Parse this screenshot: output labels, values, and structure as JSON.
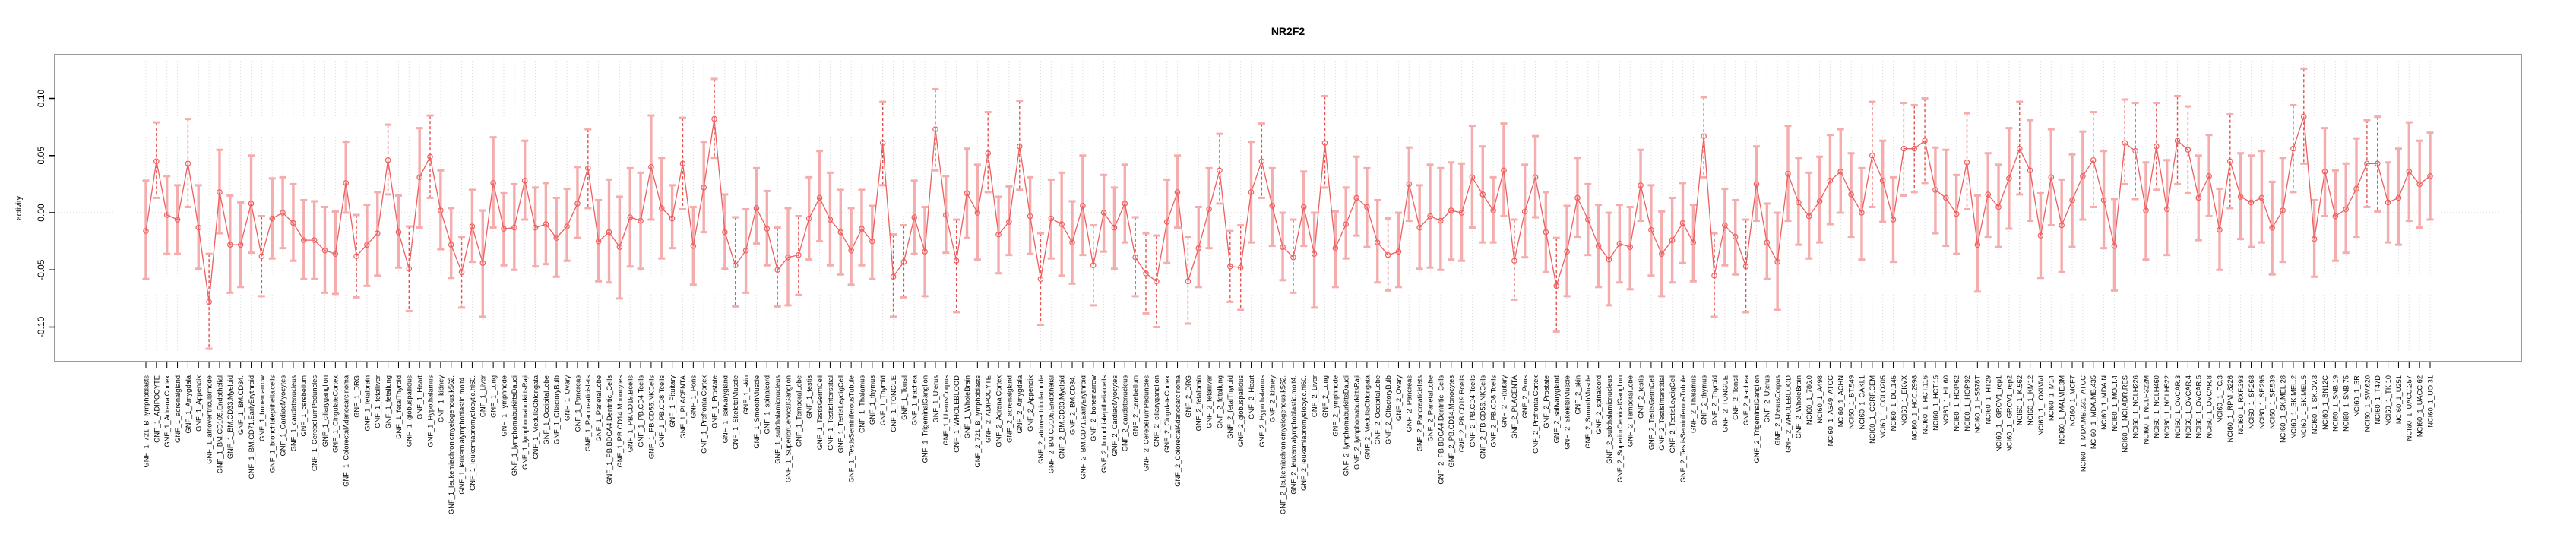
{
  "title": "NR2F2",
  "colors": {
    "series_line": "#ee5f5f",
    "point_stroke": "#ee5f5f",
    "errorbar_solid": "#f5acac",
    "errorbar_significant_dashed": "#e84f4f",
    "errorbar_cap": "#f5acac",
    "gridline": "#dcdcdc",
    "zero_line": "#c8c8c8",
    "plot_border": "#9a9a9a",
    "axis_tick": "#000000",
    "text": "#000000",
    "background": "#ffffff"
  },
  "chart_data": {
    "type": "line",
    "subtype": "point-errorbar-series",
    "title": "NR2F2",
    "xlabel": "",
    "ylabel": "activity",
    "ylim": [
      -0.131,
      0.138
    ],
    "yticks": [
      0.1,
      0.05,
      0.0,
      -0.05,
      -0.1
    ],
    "ytick_labels": [
      "0.10",
      "0.05",
      "0.00",
      "-0.05",
      "-0.10"
    ],
    "grid": "vertical-dotted-per-category",
    "zero_reference_line": true,
    "legend": "none",
    "categories": [
      "GNF_1_721_B_lymphoblasts",
      "GNF_1_ADIPOCYTE",
      "GNF_1_AdrenalCortex",
      "GNF_1_adrenalgland",
      "GNF_1_Amygdala",
      "GNF_1_Appendix",
      "GNF_1_atrioventricularnode",
      "GNF_1_BM.CD105.Endothelial",
      "GNF_1_BM.CD33.Myeloid",
      "GNF_1_BM.CD34.",
      "GNF_1_BM.CD71.EarlyErythroid",
      "GNF_1_bonemarrow",
      "GNF_1_bronchialepithelialcells",
      "GNF_1_CardiacMyocytes",
      "GNF_1_caudatenucleus",
      "GNF_1_cerebellum",
      "GNF_1_CerebellumPeduncles",
      "GNF_1_ciliaryganglion",
      "GNF_1_CingulateCortex",
      "GNF_1_ColorectalAdenocarcinoma",
      "GNF_1_DRG",
      "GNF_1_fetalbrain",
      "GNF_1_fetalliver",
      "GNF_1_fetallung",
      "GNF_1_fetalThyroid",
      "GNF_1_globuspallidus",
      "GNF_1_Heart",
      "GNF_1_Hypothalamus",
      "GNF_1_kidney",
      "GNF_1_leukemiachronicmyelogenous.k562.",
      "GNF_1_leukemialymphoblastic.molt4.",
      "GNF_1_leukemiapromyelocytic.hl60.",
      "GNF_1_Liver",
      "GNF_1_Lung",
      "GNF_1_lymphnode",
      "GNF_1_lymphomaburkittsDaudi",
      "GNF_1_lymphomaburkittsRaji",
      "GNF_1_MedullaOblongata",
      "GNF_1_OccipitalLobe",
      "GNF_1_OlfactoryBulb",
      "GNF_1_Ovary",
      "GNF_1_Pancreas",
      "GNF_1_Pancreaticislets",
      "GNF_1_ParietalLobe",
      "GNF_1_PB.BDCA4.Dentritic_Cells",
      "GNF_1_PB.CD14.Monocytes",
      "GNF_1_PB.CD19.Bcells",
      "GNF_1_PB.CD4.Tcells",
      "GNF_1_PB.CD56.NKCells",
      "GNF_1_PB.CD8.Tcells",
      "GNF_1_Pituitary",
      "GNF_1_PLACENTA",
      "GNF_1_Pons",
      "GNF_1_PrefrontalCortex",
      "GNF_1_Prostate",
      "GNF_1_salivarygland",
      "GNF_1_SkeletalMuscle",
      "GNF_1_skin",
      "GNF_1_SmoothMuscle",
      "GNF_1_spinalcord",
      "GNF_1_subthalamicnucleus",
      "GNF_1_SuperiorCervicalGanglion",
      "GNF_1_TemporalLobe",
      "GNF_1_testis",
      "GNF_1_TestisGermCell",
      "GNF_1_TestisInterstitial",
      "GNF_1_TestisLeydigCell",
      "GNF_1_TestisSeminiferousTubule",
      "GNF_1_Thalamus",
      "GNF_1_thymus",
      "GNF_1_Thyroid",
      "GNF_1_TONGUE",
      "GNF_1_Tonsil",
      "GNF_1_trachea",
      "GNF_1_TrigeminalGanglion",
      "GNF_1_Uterus",
      "GNF_1_UterusCorpus",
      "GNF_1_WHOLEBLOOD",
      "GNF_1_WholeBrain",
      "GNF_2_721_B_lymphoblasts",
      "GNF_2_ADIPOCYTE",
      "GNF_2_AdrenalCortex",
      "GNF_2_adrenalgland",
      "GNF_2_Amygdala",
      "GNF_2_Appendix",
      "GNF_2_atrioventricularnode",
      "GNF_2_BM.CD105.Endothelial",
      "GNF_2_BM.CD33.Myeloid",
      "GNF_2_BM.CD34.",
      "GNF_2_BM.CD71.EarlyErythroid",
      "GNF_2_bonemarrow",
      "GNF_2_bronchialepithelialcells",
      "GNF_2_CardiacMyocytes",
      "GNF_2_caudatenucleus",
      "GNF_2_cerebellum",
      "GNF_2_CerebellumPeduncles",
      "GNF_2_ciliaryganglion",
      "GNF_2_CingulateCortex",
      "GNF_2_ColorectalAdenocarcinoma",
      "GNF_2_DRG",
      "GNF_2_fetalbrain",
      "GNF_2_fetalliver",
      "GNF_2_fetallung",
      "GNF_2_fetalThyroid",
      "GNF_2_globuspallidus",
      "GNF_2_Heart",
      "GNF_2_Hypothalamus",
      "GNF_2_kidney",
      "GNF_2_leukemiachronicmyelogenous.k562.",
      "GNF_2_leukemialymphoblastic.molt4.",
      "GNF_2_leukemiapromyelocytic.hl60.",
      "GNF_2_Liver",
      "GNF_2_Lung",
      "GNF_2_lymphnode",
      "GNF_2_lymphomaburkittsDaudi",
      "GNF_2_lymphomaburkittsRaji",
      "GNF_2_MedullaOblongata",
      "GNF_2_OccipitalLobe",
      "GNF_2_OlfactoryBulb",
      "GNF_2_Ovary",
      "GNF_2_Pancreas",
      "GNF_2_Pancreaticislets",
      "GNF_2_ParietalLobe",
      "GNF_2_PB.BDCA4.Dentritic_Cells",
      "GNF_2_PB.CD14.Monocytes",
      "GNF_2_PB.CD19.Bcells",
      "GNF_2_PB.CD4.Tcells",
      "GNF_2_PB.CD56.NKCells",
      "GNF_2_PB.CD8.Tcells",
      "GNF_2_Pituitary",
      "GNF_2_PLACENTA",
      "GNF_2_Pons",
      "GNF_2_PrefrontalCortex",
      "GNF_2_Prostate",
      "GNF_2_salivarygland",
      "GNF_2_SkeletalMuscle",
      "GNF_2_skin",
      "GNF_2_SmoothMuscle",
      "GNF_2_spinalcord",
      "GNF_2_subthalamicnucleus",
      "GNF_2_SuperiorCervicalGanglion",
      "GNF_2_TemporalLobe",
      "GNF_2_testis",
      "GNF_2_TestisGermCell",
      "GNF_2_TestisInterstitial",
      "GNF_2_TestisLeydigCell",
      "GNF_2_TestisSeminiferousTubule",
      "GNF_2_Thalamus",
      "GNF_2_thymus",
      "GNF_2_Thyroid",
      "GNF_2_TONGUE",
      "GNF_2_Tonsil",
      "GNF_2_trachea",
      "GNF_2_TrigeminalGanglion",
      "GNF_2_Uterus",
      "GNF_2_UterusCorpus",
      "GNF_2_WHOLEBLOOD",
      "GNF_2_WholeBrain",
      "NCI60_1_786.0",
      "NCI60_1_A498",
      "NCI60_1_A549_ATCC",
      "NCI60_1_ACHN",
      "NCI60_1_BT.549",
      "NCI60_1_CAKI.1",
      "NCI60_1_CCRF.CEM",
      "NCI60_1_COLO205",
      "NCI60_1_DU.145",
      "NCI60_1_EKVX",
      "NCI60_1_HCC.2998",
      "NCI60_1_HCT.116",
      "NCI60_1_HCT.15",
      "NCI60_1_HL.60",
      "NCI60_1_HOP.62",
      "NCI60_1_HOP.92",
      "NCI60_1_HS578T",
      "NCI60_1_HT29",
      "NCI60_1_IGROV1_rep1",
      "NCI60_1_IGROV1_rep2",
      "NCI60_1_K.562",
      "NCI60_1_KM12",
      "NCI60_1_LOXIMVI",
      "NCI60_1_M14",
      "NCI60_1_MALME.3M",
      "NCI60_1_MCF7",
      "NCI60_1_MDA.MB.231_ATCC",
      "NCI60_1_MDA.MB.435",
      "NCI60_1_MDA.N",
      "NCI60_1_MOLT.4",
      "NCI60_1_NCI.ADR.RES",
      "NCI60_1_NCI.H226",
      "NCI60_1_NCI.H322M",
      "NCI60_1_NCI.H460",
      "NCI60_1_NCI.H522",
      "NCI60_1_OVCAR.3",
      "NCI60_1_OVCAR.4",
      "NCI60_1_OVCAR.5",
      "NCI60_1_OVCAR.8",
      "NCI60_1_PC.3",
      "NCI60_1_RPMI.8226",
      "NCI60_1_RXF.393",
      "NCI60_1_SF.268",
      "NCI60_1_SF.295",
      "NCI60_1_SF.539",
      "NCI60_1_SK.MEL.28",
      "NCI60_1_SK.MEL.2",
      "NCI60_1_SK.MEL.5",
      "NCI60_1_SK.OV.3",
      "NCI60_1_SN12C",
      "NCI60_1_SNB.19",
      "NCI60_1_SNB.75",
      "NCI60_1_SR",
      "NCI60_1_SW.620",
      "NCI60_1_T47D",
      "NCI60_1_TK.10",
      "NCI60_1_U251",
      "NCI60_1_UACC.257",
      "NCI60_1_UACC.62",
      "NCI60_1_UO.31"
    ],
    "values": [
      -0.016,
      0.045,
      -0.002,
      -0.006,
      0.043,
      -0.013,
      -0.078,
      0.018,
      -0.028,
      -0.028,
      0.008,
      -0.038,
      -0.005,
      0.0,
      -0.009,
      -0.024,
      -0.024,
      -0.033,
      -0.036,
      0.026,
      -0.038,
      -0.028,
      -0.018,
      0.046,
      -0.017,
      -0.049,
      0.031,
      0.049,
      0.002,
      -0.028,
      -0.052,
      -0.012,
      -0.044,
      0.026,
      -0.014,
      -0.013,
      0.028,
      -0.013,
      -0.01,
      -0.022,
      -0.012,
      0.008,
      0.039,
      -0.025,
      -0.017,
      -0.03,
      -0.004,
      -0.007,
      0.04,
      0.004,
      -0.005,
      0.043,
      -0.029,
      0.022,
      0.082,
      -0.017,
      -0.046,
      -0.033,
      0.004,
      -0.014,
      -0.05,
      -0.039,
      -0.037,
      -0.005,
      0.013,
      -0.006,
      -0.017,
      -0.033,
      -0.014,
      -0.025,
      0.061,
      -0.056,
      -0.043,
      -0.004,
      -0.034,
      0.073,
      -0.002,
      -0.042,
      0.017,
      0.0,
      0.052,
      -0.019,
      -0.008,
      0.058,
      -0.003,
      -0.058,
      -0.005,
      -0.01,
      -0.026,
      0.006,
      -0.046,
      0.0,
      -0.013,
      0.008,
      -0.039,
      -0.053,
      -0.06,
      -0.008,
      0.018,
      -0.06,
      -0.031,
      0.003,
      0.037,
      -0.047,
      -0.048,
      0.018,
      0.045,
      0.006,
      -0.03,
      -0.039,
      0.005,
      -0.036,
      0.061,
      -0.031,
      -0.01,
      0.013,
      0.005,
      -0.026,
      -0.037,
      -0.034,
      0.025,
      -0.013,
      -0.003,
      -0.007,
      0.002,
      0.0,
      0.031,
      0.016,
      0.002,
      0.037,
      -0.042,
      0.001,
      0.031,
      -0.017,
      -0.064,
      -0.034,
      0.013,
      -0.006,
      -0.029,
      -0.041,
      -0.027,
      -0.03,
      0.024,
      -0.015,
      -0.036,
      -0.024,
      -0.009,
      -0.026,
      0.067,
      -0.055,
      -0.011,
      -0.021,
      -0.047,
      0.025,
      -0.026,
      -0.043,
      0.034,
      0.009,
      -0.003,
      0.01,
      0.028,
      0.036,
      0.016,
      0.0,
      0.05,
      0.028,
      -0.006,
      0.056,
      0.056,
      0.063,
      0.02,
      0.013,
      -0.001,
      0.044,
      -0.028,
      0.016,
      0.005,
      0.03,
      0.056,
      0.037,
      -0.02,
      0.031,
      -0.011,
      0.011,
      0.032,
      0.046,
      0.011,
      -0.029,
      0.061,
      0.054,
      0.002,
      0.058,
      0.003,
      0.063,
      0.055,
      0.013,
      0.032,
      -0.015,
      0.045,
      0.014,
      0.009,
      0.013,
      -0.013,
      0.002,
      0.056,
      0.084,
      -0.023,
      0.036,
      -0.003,
      0.003,
      0.021,
      0.043,
      0.043,
      0.009,
      0.013,
      0.036,
      0.025,
      0.032
    ],
    "ci_low": [
      -0.058,
      0.013,
      -0.036,
      -0.036,
      0.005,
      -0.049,
      -0.119,
      -0.018,
      -0.07,
      -0.065,
      -0.035,
      -0.073,
      -0.04,
      -0.031,
      -0.042,
      -0.058,
      -0.058,
      -0.07,
      -0.071,
      0.0,
      -0.074,
      -0.064,
      -0.055,
      0.016,
      -0.048,
      -0.086,
      -0.013,
      0.013,
      -0.032,
      -0.057,
      -0.083,
      -0.043,
      -0.091,
      -0.013,
      -0.046,
      -0.05,
      -0.006,
      -0.047,
      -0.045,
      -0.056,
      -0.042,
      -0.022,
      0.004,
      -0.06,
      -0.061,
      -0.075,
      -0.047,
      -0.049,
      -0.006,
      -0.04,
      -0.031,
      0.003,
      -0.063,
      -0.017,
      0.048,
      -0.049,
      -0.082,
      -0.07,
      -0.027,
      -0.046,
      -0.082,
      -0.081,
      -0.072,
      -0.041,
      -0.025,
      -0.046,
      -0.054,
      -0.063,
      -0.046,
      -0.058,
      0.024,
      -0.091,
      -0.074,
      -0.036,
      -0.073,
      0.037,
      -0.035,
      -0.087,
      -0.022,
      -0.041,
      0.018,
      -0.053,
      -0.037,
      0.02,
      -0.036,
      -0.098,
      -0.04,
      -0.055,
      -0.062,
      -0.037,
      -0.081,
      -0.034,
      -0.049,
      -0.026,
      -0.073,
      -0.088,
      -0.1,
      -0.044,
      -0.013,
      -0.097,
      -0.065,
      -0.031,
      0.008,
      -0.078,
      -0.085,
      -0.026,
      0.013,
      -0.029,
      -0.059,
      -0.07,
      -0.029,
      -0.083,
      0.022,
      -0.065,
      -0.04,
      -0.02,
      -0.03,
      -0.061,
      -0.068,
      -0.065,
      -0.007,
      -0.049,
      -0.048,
      -0.05,
      -0.041,
      -0.042,
      -0.013,
      -0.026,
      -0.026,
      -0.003,
      -0.076,
      -0.039,
      -0.004,
      -0.052,
      -0.104,
      -0.073,
      -0.021,
      -0.037,
      -0.065,
      -0.081,
      -0.061,
      -0.067,
      -0.007,
      -0.055,
      -0.073,
      -0.061,
      -0.044,
      -0.06,
      0.031,
      -0.091,
      -0.046,
      -0.054,
      -0.087,
      -0.007,
      -0.058,
      -0.085,
      -0.007,
      -0.028,
      -0.04,
      -0.026,
      -0.01,
      0.0,
      -0.021,
      -0.041,
      0.005,
      -0.008,
      -0.043,
      0.015,
      0.018,
      0.026,
      -0.018,
      -0.029,
      -0.036,
      0.003,
      -0.069,
      -0.021,
      -0.03,
      -0.014,
      0.016,
      -0.007,
      -0.057,
      -0.011,
      -0.052,
      -0.03,
      -0.006,
      0.005,
      -0.031,
      -0.068,
      0.025,
      0.012,
      -0.041,
      0.02,
      -0.037,
      0.025,
      0.017,
      -0.024,
      -0.003,
      -0.05,
      0.004,
      -0.023,
      -0.03,
      -0.026,
      -0.054,
      -0.043,
      0.018,
      0.043,
      -0.056,
      -0.003,
      -0.042,
      -0.035,
      -0.021,
      0.005,
      0.001,
      -0.026,
      -0.028,
      -0.007,
      -0.013,
      -0.006
    ],
    "ci_high": [
      0.028,
      0.079,
      0.032,
      0.024,
      0.082,
      0.024,
      -0.036,
      0.055,
      0.015,
      0.009,
      0.05,
      -0.003,
      0.03,
      0.031,
      0.025,
      0.011,
      0.01,
      0.005,
      0.001,
      0.062,
      -0.002,
      0.007,
      0.018,
      0.077,
      0.015,
      -0.012,
      0.074,
      0.085,
      0.037,
      0.004,
      -0.021,
      0.02,
      0.002,
      0.066,
      0.017,
      0.025,
      0.063,
      0.022,
      0.026,
      0.013,
      0.021,
      0.04,
      0.073,
      0.011,
      0.029,
      0.014,
      0.039,
      0.035,
      0.085,
      0.048,
      0.024,
      0.083,
      0.005,
      0.062,
      0.117,
      0.016,
      -0.004,
      0.003,
      0.039,
      0.019,
      -0.013,
      0.004,
      -0.003,
      0.031,
      0.054,
      0.035,
      0.02,
      0.004,
      0.02,
      0.006,
      0.097,
      -0.019,
      -0.011,
      0.028,
      0.005,
      0.108,
      0.032,
      -0.006,
      0.056,
      0.042,
      0.088,
      0.014,
      0.023,
      0.098,
      0.031,
      -0.018,
      0.029,
      0.035,
      0.01,
      0.05,
      -0.011,
      0.033,
      0.022,
      0.042,
      -0.004,
      -0.018,
      -0.02,
      0.029,
      0.05,
      -0.021,
      0.005,
      0.039,
      0.069,
      -0.016,
      -0.011,
      0.062,
      0.078,
      0.039,
      0.0,
      -0.006,
      0.036,
      0.0,
      0.102,
      0.001,
      0.022,
      0.049,
      0.039,
      0.011,
      -0.005,
      0.0,
      0.057,
      0.024,
      0.042,
      0.039,
      0.044,
      0.043,
      0.076,
      0.058,
      0.031,
      0.078,
      -0.006,
      0.042,
      0.067,
      0.018,
      -0.022,
      0.006,
      0.048,
      0.025,
      0.007,
      0.0,
      0.007,
      0.005,
      0.055,
      0.024,
      0.001,
      0.013,
      0.026,
      0.007,
      0.101,
      -0.018,
      0.021,
      0.011,
      -0.006,
      0.058,
      0.008,
      0.0,
      0.076,
      0.048,
      0.035,
      0.049,
      0.068,
      0.073,
      0.052,
      0.039,
      0.097,
      0.063,
      0.031,
      0.096,
      0.094,
      0.1,
      0.057,
      0.055,
      0.033,
      0.087,
      0.015,
      0.052,
      0.042,
      0.074,
      0.097,
      0.081,
      0.017,
      0.073,
      0.029,
      0.051,
      0.071,
      0.088,
      0.054,
      0.012,
      0.099,
      0.096,
      0.044,
      0.096,
      0.046,
      0.102,
      0.093,
      0.05,
      0.068,
      0.021,
      0.086,
      0.052,
      0.05,
      0.054,
      0.027,
      0.048,
      0.094,
      0.126,
      0.011,
      0.074,
      0.037,
      0.043,
      0.065,
      0.081,
      0.084,
      0.044,
      0.056,
      0.079,
      0.063,
      0.07
    ]
  }
}
